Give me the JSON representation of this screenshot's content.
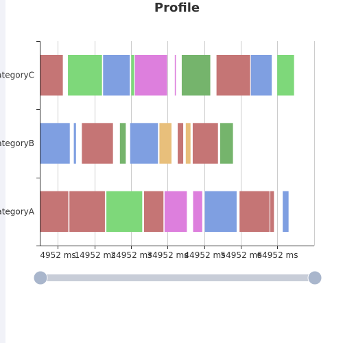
{
  "chart_data": {
    "type": "bar",
    "subtype": "profile-gantt",
    "title": "Profile",
    "categories": [
      "categoryA",
      "categoryB",
      "categoryC"
    ],
    "x_tick_labels": [
      "4952 ms",
      "14952 ms",
      "24952 ms",
      "34952 ms",
      "44952 ms",
      "54952 ms",
      "64952 ms"
    ],
    "xlim": [
      0,
      75000
    ],
    "x_ticks": [
      4952,
      14952,
      24952,
      34952,
      44952,
      54952,
      64952
    ],
    "grid": true,
    "legend": "none",
    "data_zoom": {
      "start": 0,
      "end": 100
    },
    "colors": {
      "red": "#c57575",
      "green": "#7ed87a",
      "blue": "#7f9fe1",
      "pink": "#dd7fdd",
      "darkgreen": "#75b46c",
      "orange": "#e8bf7b",
      "axis": "#333333",
      "grid": "#cccccc",
      "slider_track": "#c8cdd8",
      "slider_handle": "#a9b6cc"
    },
    "tasks": [
      {
        "category": "categoryA",
        "start": 0,
        "end": 7800,
        "color": "red"
      },
      {
        "category": "categoryA",
        "start": 8100,
        "end": 17800,
        "color": "red"
      },
      {
        "category": "categoryA",
        "start": 18200,
        "end": 28000,
        "color": "green"
      },
      {
        "category": "categoryA",
        "start": 28500,
        "end": 33800,
        "color": "red"
      },
      {
        "category": "categoryA",
        "start": 34100,
        "end": 40200,
        "color": "pink"
      },
      {
        "category": "categoryA",
        "start": 41900,
        "end": 44400,
        "color": "pink"
      },
      {
        "category": "categoryA",
        "start": 45100,
        "end": 53800,
        "color": "blue"
      },
      {
        "category": "categoryA",
        "start": 54600,
        "end": 62800,
        "color": "red"
      },
      {
        "category": "categoryA",
        "start": 63000,
        "end": 64000,
        "color": "red"
      },
      {
        "category": "categoryA",
        "start": 66400,
        "end": 68000,
        "color": "blue"
      },
      {
        "category": "categoryB",
        "start": 0,
        "end": 8200,
        "color": "blue"
      },
      {
        "category": "categoryB",
        "start": 9300,
        "end": 9900,
        "color": "blue"
      },
      {
        "category": "categoryB",
        "start": 11500,
        "end": 20000,
        "color": "red"
      },
      {
        "category": "categoryB",
        "start": 21900,
        "end": 23500,
        "color": "darkgreen"
      },
      {
        "category": "categoryB",
        "start": 24700,
        "end": 32300,
        "color": "blue"
      },
      {
        "category": "categoryB",
        "start": 32700,
        "end": 36000,
        "color": "orange"
      },
      {
        "category": "categoryB",
        "start": 37700,
        "end": 39200,
        "color": "red"
      },
      {
        "category": "categoryB",
        "start": 39900,
        "end": 41200,
        "color": "orange"
      },
      {
        "category": "categoryB",
        "start": 41800,
        "end": 48700,
        "color": "red"
      },
      {
        "category": "categoryB",
        "start": 49300,
        "end": 52800,
        "color": "darkgreen"
      },
      {
        "category": "categoryC",
        "start": 0,
        "end": 6300,
        "color": "red"
      },
      {
        "category": "categoryC",
        "start": 7700,
        "end": 17000,
        "color": "green"
      },
      {
        "category": "categoryC",
        "start": 17300,
        "end": 24600,
        "color": "blue"
      },
      {
        "category": "categoryC",
        "start": 25000,
        "end": 25800,
        "color": "green"
      },
      {
        "category": "categoryC",
        "start": 26000,
        "end": 34800,
        "color": "pink"
      },
      {
        "category": "categoryC",
        "start": 36900,
        "end": 37200,
        "color": "pink"
      },
      {
        "category": "categoryC",
        "start": 38800,
        "end": 46600,
        "color": "darkgreen"
      },
      {
        "category": "categoryC",
        "start": 48300,
        "end": 57500,
        "color": "red"
      },
      {
        "category": "categoryC",
        "start": 57700,
        "end": 63400,
        "color": "blue"
      },
      {
        "category": "categoryC",
        "start": 64900,
        "end": 69500,
        "color": "green"
      }
    ]
  }
}
